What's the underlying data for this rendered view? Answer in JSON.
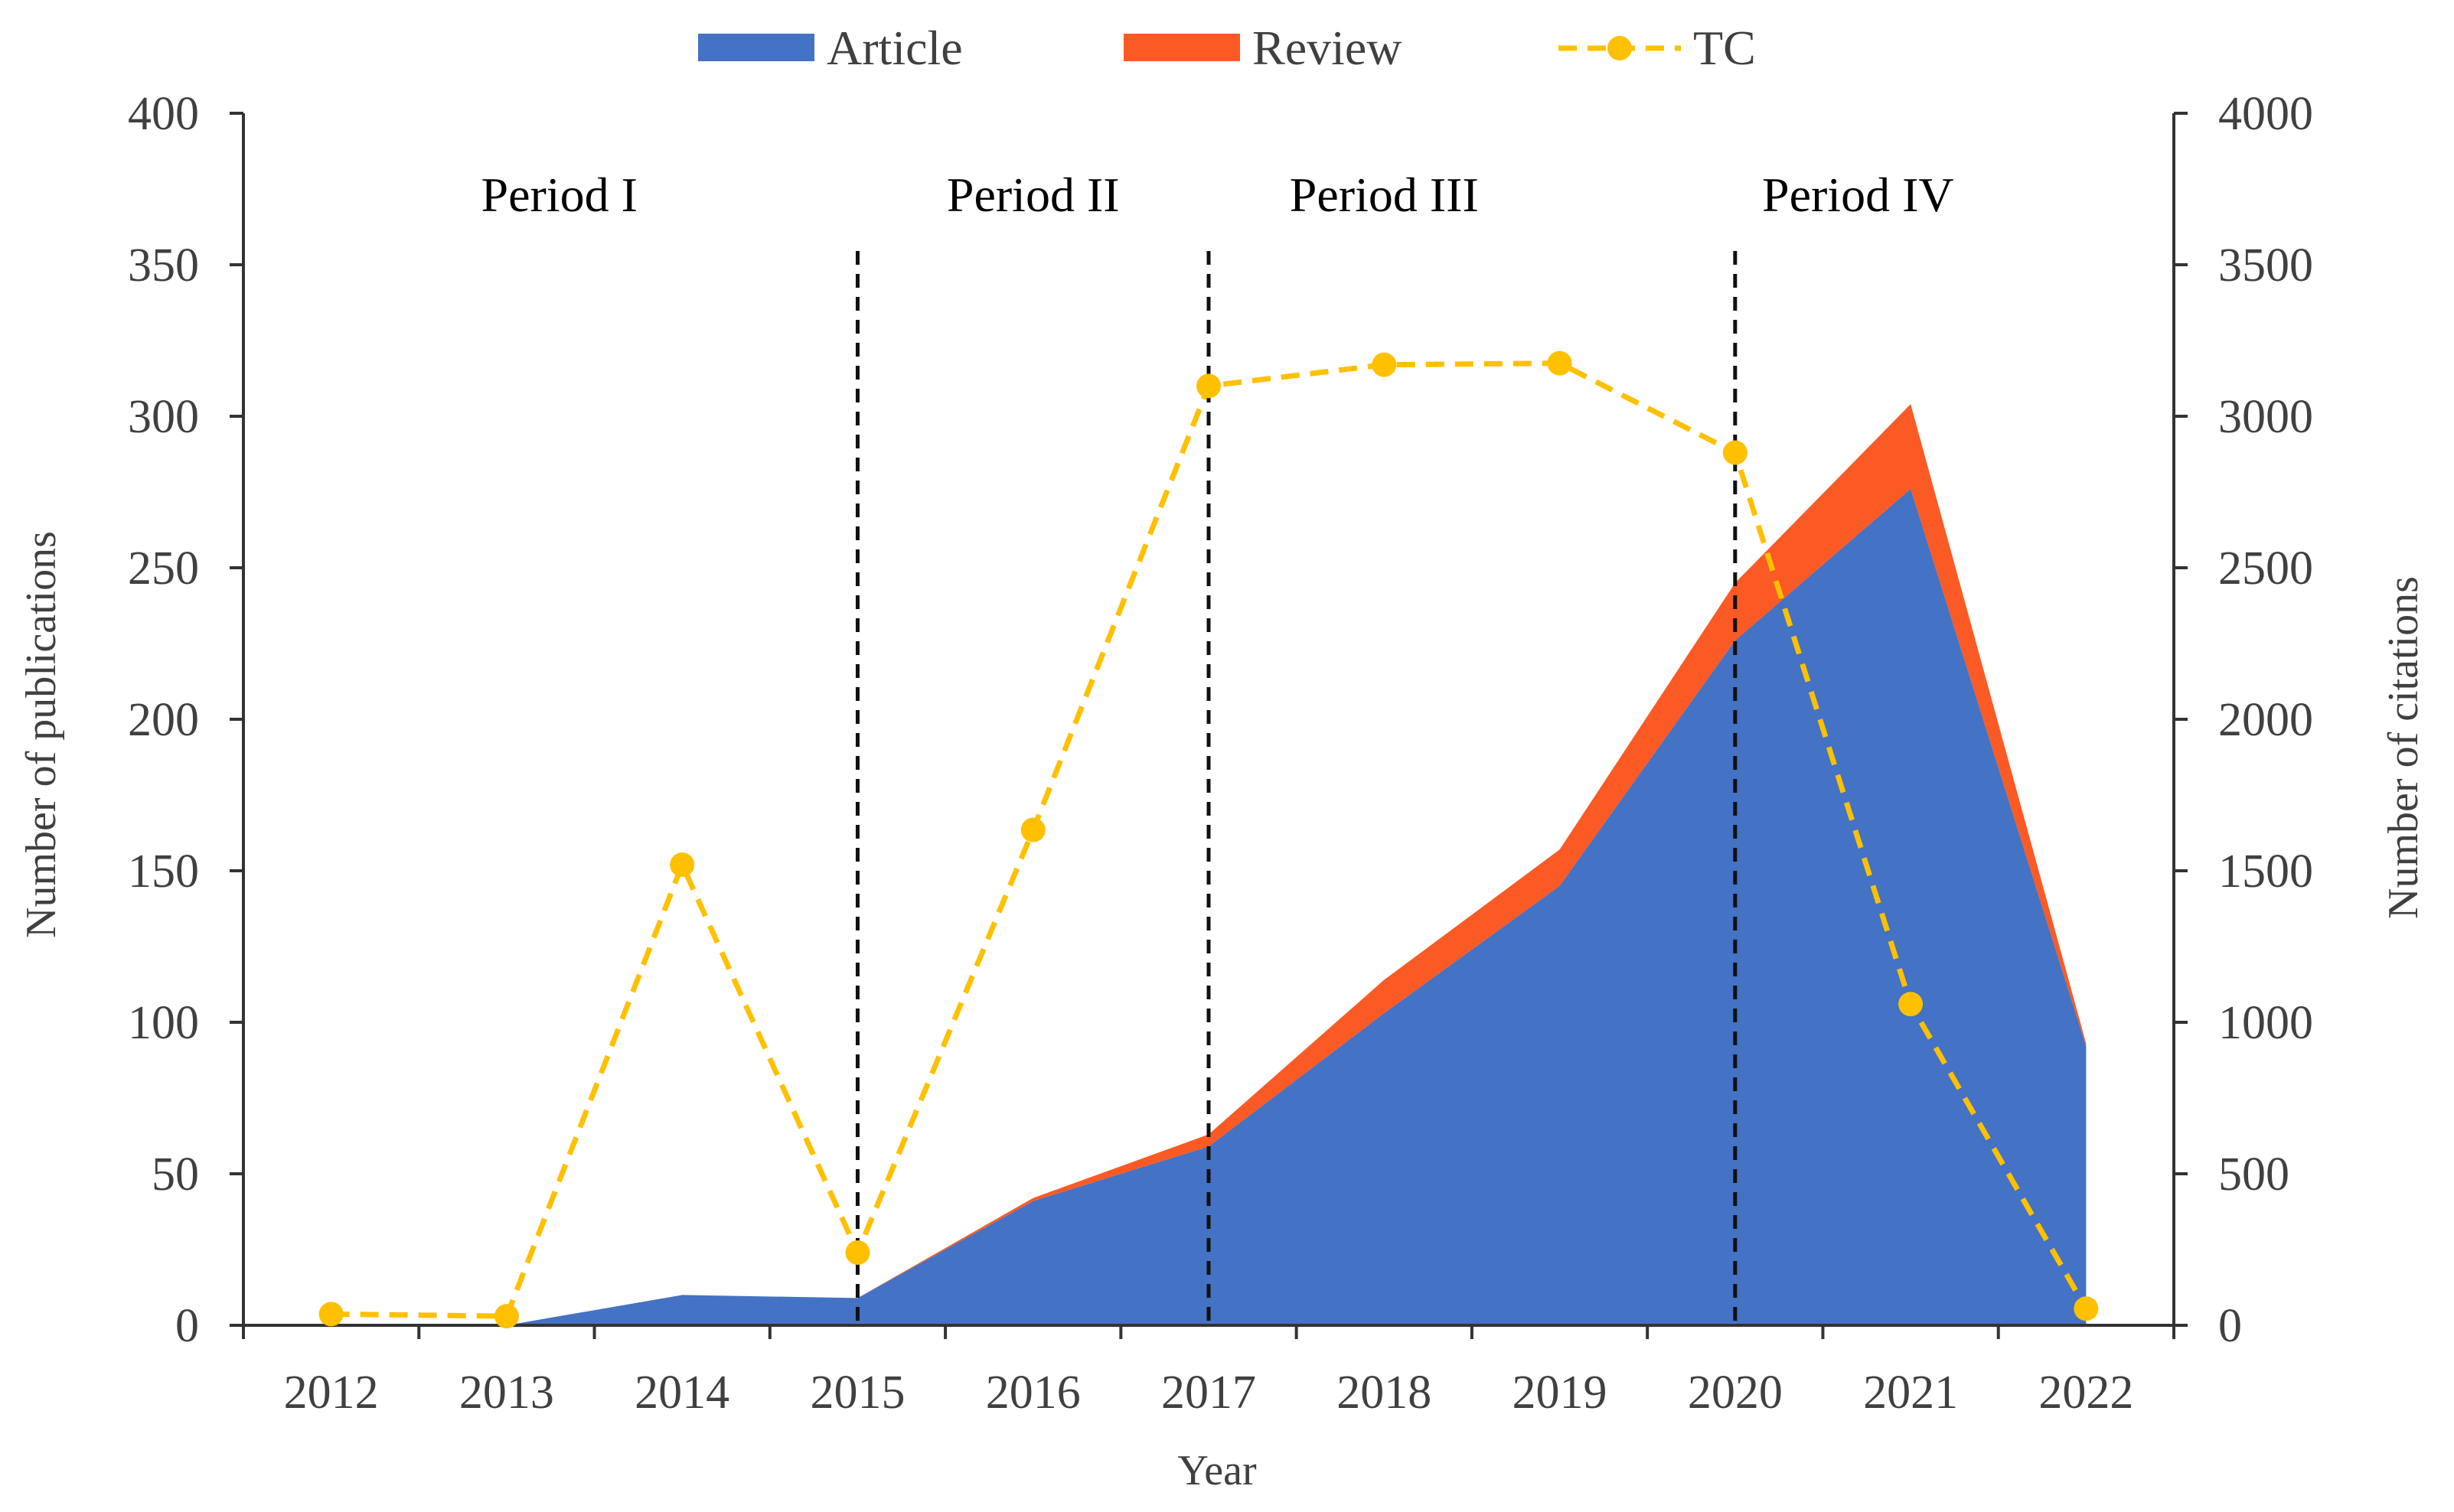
{
  "chart_data": {
    "type": "area",
    "title": "",
    "xlabel": "Year",
    "ylabel": "Number of publications",
    "y2label": "Number of citations",
    "categories": [
      "2012",
      "2013",
      "2014",
      "2015",
      "2016",
      "2017",
      "2018",
      "2019",
      "2020",
      "2021",
      "2022"
    ],
    "ylim": [
      0,
      400
    ],
    "y2lim": [
      0,
      4000
    ],
    "yticks": [
      0,
      50,
      100,
      150,
      200,
      250,
      300,
      350,
      400
    ],
    "y2ticks": [
      0,
      500,
      1000,
      1500,
      2000,
      2500,
      3000,
      3500,
      4000
    ],
    "series": [
      {
        "name": "Article",
        "kind": "stacked-area",
        "axis": "left",
        "color": "#4472c4",
        "values": [
          0,
          0,
          10,
          9,
          41,
          59,
          103,
          145,
          226,
          276,
          92
        ]
      },
      {
        "name": "Review",
        "kind": "stacked-area",
        "axis": "left",
        "color": "#fc5a24",
        "values": [
          0,
          0,
          0,
          0,
          1,
          4,
          11,
          12,
          19,
          28,
          1
        ]
      },
      {
        "name": "TC",
        "kind": "dashed-line-markers",
        "axis": "right",
        "color": "#ffc000",
        "values": [
          37,
          30,
          1520,
          240,
          1635,
          3100,
          3170,
          3175,
          2880,
          1060,
          55
        ]
      }
    ],
    "periods": [
      {
        "label": "Period I",
        "center": 2013.3
      },
      {
        "label": "Period II",
        "center": 2016.0
      },
      {
        "label": "Period III",
        "center": 2018.0
      },
      {
        "label": "Period IV",
        "center": 2020.7
      }
    ],
    "divider_years": [
      2015,
      2017,
      2020
    ],
    "legend": {
      "placement": "top-center",
      "entries": [
        "Article",
        "Review",
        "TC"
      ]
    },
    "grid": false
  }
}
